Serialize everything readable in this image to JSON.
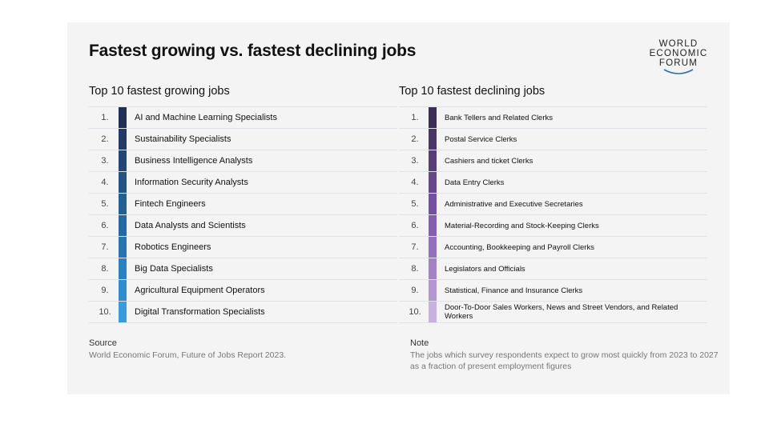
{
  "title": "Fastest growing vs. fastest declining jobs",
  "logo": {
    "line1": "WORLD",
    "line2": "ECONOMIC",
    "line3": "FORUM"
  },
  "chart_data": {
    "type": "table",
    "tables": [
      {
        "heading": "Top 10 fastest growing jobs",
        "ranks": [
          "1.",
          "2.",
          "3.",
          "4.",
          "5.",
          "6.",
          "7.",
          "8.",
          "9.",
          "10."
        ],
        "jobs": [
          "AI and Machine Learning Specialists",
          "Sustainability Specialists",
          "Business Intelligence Analysts",
          "Information Security Analysts",
          "Fintech Engineers",
          "Data Analysts and Scientists",
          "Robotics Engineers",
          "Big Data Specialists",
          "Agricultural Equipment Operators",
          "Digital Transformation Specialists"
        ],
        "colors": [
          "#1f2f57",
          "#213a66",
          "#224675",
          "#235385",
          "#245f94",
          "#2569a3",
          "#2774b1",
          "#2a80c0",
          "#2f8dcf",
          "#3a9bdc"
        ]
      },
      {
        "heading": "Top 10 fastest declining jobs",
        "ranks": [
          "1.",
          "2.",
          "3.",
          "4.",
          "5.",
          "6.",
          "7.",
          "8.",
          "9.",
          "10."
        ],
        "jobs": [
          "Bank Tellers and Related Clerks",
          "Postal Service Clerks",
          "Cashiers and ticket Clerks",
          "Data Entry Clerks",
          "Administrative and Executive Secretaries",
          "Material-Recording and Stock-Keeping Clerks",
          "Accounting, Bookkeeping and Payroll Clerks",
          "Legislators and Officials",
          "Statistical, Finance and Insurance Clerks",
          "Door-To-Door Sales Workers, News and Street Vendors, and Related Workers"
        ],
        "colors": [
          "#3c2d55",
          "#4a3567",
          "#583e79",
          "#66478b",
          "#7451a0",
          "#835fae",
          "#9370bb",
          "#a383c6",
          "#b497d1",
          "#c8b1de"
        ]
      }
    ]
  },
  "footer": {
    "source_label": "Source",
    "source_text": "World Economic Forum, Future of Jobs Report 2023.",
    "note_label": "Note",
    "note_text": "The jobs which survey respondents expect to grow most quickly from 2023 to 2027 as a fraction of present employment figures"
  }
}
